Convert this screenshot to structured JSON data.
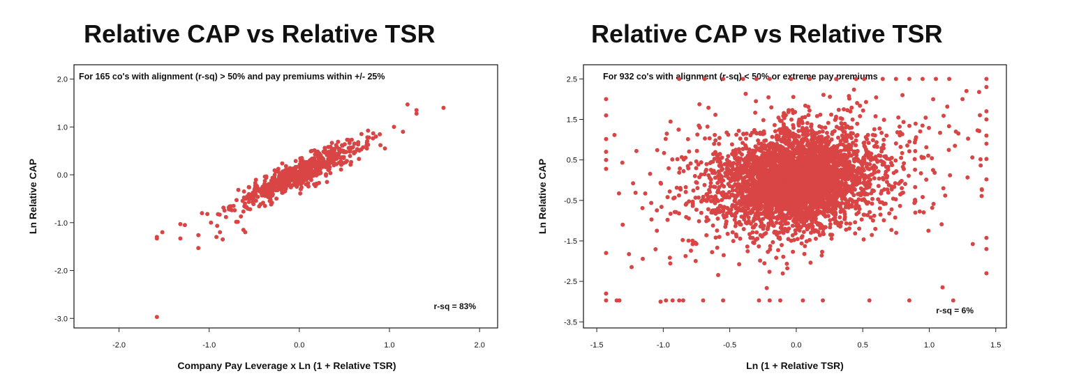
{
  "chart_data": [
    {
      "type": "scatter",
      "title": "Relative CAP vs Relative TSR",
      "subtitle": "For 165 co's with alignment (r-sq) > 50% and pay premiums within +/- 25%",
      "xlabel": "Company Pay Leverage x Ln (1 + Relative TSR)",
      "ylabel": "Ln Relative CAP",
      "annotation": "r-sq = 83%",
      "xlim": [
        -2.5,
        2.2
      ],
      "ylim": [
        -3.2,
        2.3
      ],
      "x_ticks": [
        -2.0,
        -1.0,
        0.0,
        1.0,
        2.0
      ],
      "x_tick_labels": [
        "-2.0",
        "-1.0",
        "0.0",
        "1.0",
        "2.0"
      ],
      "y_ticks": [
        2.0,
        1.0,
        0.0,
        -1.0,
        -2.0,
        -3.0
      ],
      "y_tick_labels": [
        "2.0",
        "1.0",
        "0.0",
        "-1.0",
        "-2.0",
        "-3.0"
      ],
      "grid": false,
      "marker_color": "#d94444",
      "pattern": {
        "n": 650,
        "slope": 0.88,
        "intercept": 0.02,
        "core_x_mean": 0.0,
        "core_x_sd": 0.35,
        "resid_sd": 0.14
      },
      "points": [
        [
          -1.58,
          -2.97
        ],
        [
          -1.58,
          -1.3
        ],
        [
          -1.58,
          -1.33
        ],
        [
          -1.52,
          -1.2
        ],
        [
          -1.32,
          -1.03
        ],
        [
          -1.27,
          -1.05
        ],
        [
          -1.32,
          -1.33
        ],
        [
          -1.12,
          -1.26
        ],
        [
          -1.12,
          -1.53
        ],
        [
          -1.08,
          -0.8
        ],
        [
          -1.02,
          -0.82
        ],
        [
          -0.98,
          -1.0
        ],
        [
          -0.92,
          -1.3
        ],
        [
          -0.88,
          -1.2
        ],
        [
          -0.85,
          -1.35
        ],
        [
          -0.78,
          -0.72
        ],
        [
          -0.73,
          -0.65
        ],
        [
          -0.62,
          -1.15
        ],
        [
          -0.6,
          -1.2
        ],
        [
          1.2,
          1.47
        ],
        [
          1.3,
          1.35
        ],
        [
          1.3,
          1.28
        ],
        [
          1.6,
          1.4
        ],
        [
          1.15,
          0.9
        ],
        [
          1.05,
          1.0
        ],
        [
          0.85,
          0.8
        ],
        [
          0.95,
          0.55
        ],
        [
          0.9,
          0.62
        ]
      ]
    },
    {
      "type": "scatter",
      "title": "Relative CAP vs Relative TSR",
      "subtitle": "For 932 co's with alignment (r-sq) < 50% or extreme pay premiums",
      "xlabel": "Ln (1 + Relative TSR)",
      "ylabel": "Ln Relative CAP",
      "annotation": "r-sq = 6%",
      "xlim": [
        -1.6,
        1.58
      ],
      "ylim": [
        -3.65,
        2.85
      ],
      "x_ticks": [
        -1.5,
        -1.0,
        -0.5,
        0.0,
        0.5,
        1.0,
        1.5
      ],
      "x_tick_labels": [
        "-1.5",
        "-1.0",
        "-0.5",
        "0.0",
        "0.5",
        "1.0",
        "1.5"
      ],
      "y_ticks": [
        2.5,
        1.5,
        0.5,
        -0.5,
        -1.5,
        -2.5,
        -3.5
      ],
      "y_tick_labels": [
        "2.5",
        "1.5",
        "0.5",
        "-0.5",
        "-1.5",
        "-2.5",
        "-3.5"
      ],
      "grid": false,
      "marker_color": "#d94444",
      "pattern": {
        "n": 4200,
        "slope": 0.35,
        "intercept": 0.0,
        "core_x_mean": 0.0,
        "core_x_sd": 0.26,
        "resid_sd": 0.55,
        "wide_share": 0.22,
        "wide_x_sd": 0.55,
        "wide_resid_sd": 0.9,
        "x_clip": [
          -1.43,
          1.43
        ],
        "y_clip": [
          -2.97,
          2.5
        ]
      },
      "points": [
        [
          -1.43,
          2.0
        ],
        [
          -1.43,
          1.6
        ],
        [
          -1.43,
          0.7
        ],
        [
          -1.43,
          0.5
        ],
        [
          -1.43,
          -1.8
        ],
        [
          -1.43,
          -2.8
        ],
        [
          -1.43,
          -2.97
        ],
        [
          1.43,
          2.5
        ],
        [
          1.43,
          2.3
        ],
        [
          1.43,
          1.7
        ],
        [
          1.43,
          1.5
        ],
        [
          1.43,
          1.1
        ],
        [
          1.43,
          0.9
        ],
        [
          1.43,
          -1.7
        ],
        [
          1.43,
          -2.3
        ],
        [
          1.28,
          2.2
        ],
        [
          1.25,
          2.0
        ],
        [
          1.2,
          1.2
        ],
        [
          -0.98,
          -2.97
        ],
        [
          -0.93,
          -2.97
        ],
        [
          -0.88,
          -2.97
        ],
        [
          -0.85,
          -2.97
        ],
        [
          -0.7,
          -2.97
        ],
        [
          -0.55,
          -2.97
        ],
        [
          0.55,
          -2.97
        ],
        [
          0.85,
          -2.97
        ],
        [
          1.18,
          -2.97
        ],
        [
          -0.55,
          2.5
        ],
        [
          -0.4,
          2.5
        ],
        [
          -0.3,
          2.5
        ],
        [
          -0.2,
          2.5
        ],
        [
          0.1,
          2.5
        ],
        [
          0.3,
          2.5
        ],
        [
          0.45,
          2.5
        ],
        [
          0.65,
          2.5
        ],
        [
          0.75,
          2.5
        ],
        [
          0.85,
          2.5
        ],
        [
          0.95,
          2.5
        ],
        [
          1.05,
          2.5
        ],
        [
          1.15,
          2.5
        ],
        [
          -0.88,
          2.5
        ],
        [
          -0.28,
          -2.97
        ],
        [
          -0.2,
          -2.97
        ],
        [
          -0.12,
          -2.97
        ],
        [
          0.05,
          -2.97
        ],
        [
          0.2,
          -2.97
        ],
        [
          1.1,
          -2.65
        ],
        [
          -1.02,
          -3.0
        ],
        [
          -1.35,
          -2.97
        ],
        [
          -1.33,
          -2.97
        ]
      ]
    }
  ]
}
